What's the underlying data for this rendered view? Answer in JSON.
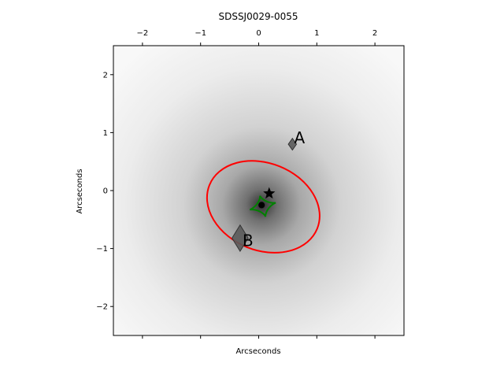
{
  "chart_data": {
    "type": "scatter",
    "title": "SDSSJ0029-0055",
    "xlabel": "Arcseconds",
    "ylabel": "Arcseconds",
    "xlim": [
      -2.5,
      2.5
    ],
    "ylim": [
      -2.5,
      2.5
    ],
    "xticks": [
      -2,
      -1,
      0,
      1,
      2
    ],
    "yticks": [
      -2,
      -1,
      0,
      1,
      2
    ],
    "x_tick_labels": [
      "−2",
      "−1",
      "0",
      "1",
      "2"
    ],
    "y_tick_labels": [
      "−2",
      "−1",
      "0",
      "1",
      "2"
    ],
    "top_axis_ticks": true,
    "grid": false,
    "background": "grayscale lens light profile, dark at center (0.05, -0.25)",
    "lens_center": {
      "x": 0.05,
      "y": -0.25
    },
    "source_star": {
      "x": 0.18,
      "y": -0.05
    },
    "critical_curve": {
      "color": "#ff0000",
      "center": {
        "x": 0.08,
        "y": -0.28
      },
      "semi_major": 1.0,
      "semi_minor": 0.75,
      "angle_deg": -22
    },
    "caustic": {
      "color": "#008000",
      "center": {
        "x": 0.07,
        "y": -0.27
      },
      "size": 0.22
    },
    "images": [
      {
        "label": "A",
        "x": 0.58,
        "y": 0.8,
        "width": 0.14,
        "height": 0.2
      },
      {
        "label": "B",
        "x": -0.32,
        "y": -0.82,
        "width": 0.28,
        "height": 0.45
      }
    ],
    "colors": {
      "image_fill": "#5a5a5a",
      "star": "#000000"
    }
  }
}
